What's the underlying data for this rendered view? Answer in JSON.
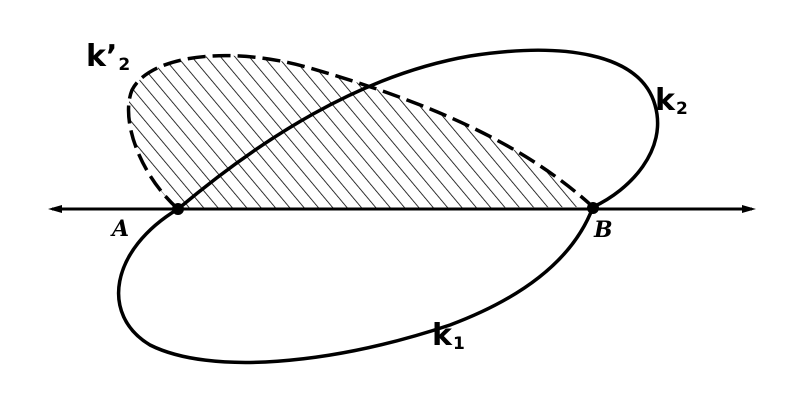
{
  "labels": {
    "k2_prime": {
      "main": "k’",
      "sub": "2"
    },
    "k2": {
      "main": "k",
      "sub": "2"
    },
    "k1": {
      "main": "k",
      "sub": "1"
    },
    "point_a": "A",
    "point_b": "B"
  },
  "colors": {
    "stroke": "#000000",
    "background": "#ffffff"
  }
}
